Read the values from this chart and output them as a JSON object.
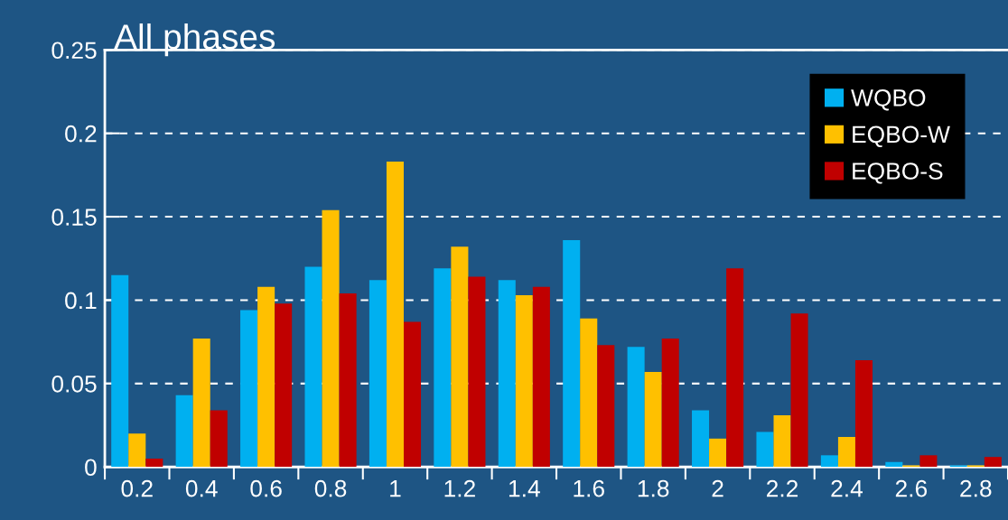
{
  "chart_data": {
    "type": "bar",
    "title": "All phases",
    "categories": [
      "0.2",
      "0.4",
      "0.6",
      "0.8",
      "1",
      "1.2",
      "1.4",
      "1.6",
      "1.8",
      "2",
      "2.2",
      "2.4",
      "2.6",
      "2.8"
    ],
    "series": [
      {
        "name": "WQBO",
        "color": "#00b0f0",
        "values": [
          0.115,
          0.043,
          0.094,
          0.12,
          0.112,
          0.119,
          0.112,
          0.136,
          0.072,
          0.034,
          0.021,
          0.007,
          0.003,
          0.001
        ]
      },
      {
        "name": "EQBO-W",
        "color": "#ffc000",
        "values": [
          0.02,
          0.077,
          0.108,
          0.154,
          0.183,
          0.132,
          0.103,
          0.089,
          0.057,
          0.017,
          0.031,
          0.018,
          0.001,
          0.001
        ]
      },
      {
        "name": "EQBO-S",
        "color": "#c00000",
        "values": [
          0.005,
          0.034,
          0.098,
          0.104,
          0.087,
          0.114,
          0.108,
          0.073,
          0.077,
          0.119,
          0.092,
          0.064,
          0.007,
          0.006
        ]
      }
    ],
    "ylim": [
      0,
      0.25
    ],
    "yticks": [
      0,
      0.05,
      0.1,
      0.15,
      0.2,
      0.25
    ],
    "grid": "y",
    "legend": "top right"
  }
}
